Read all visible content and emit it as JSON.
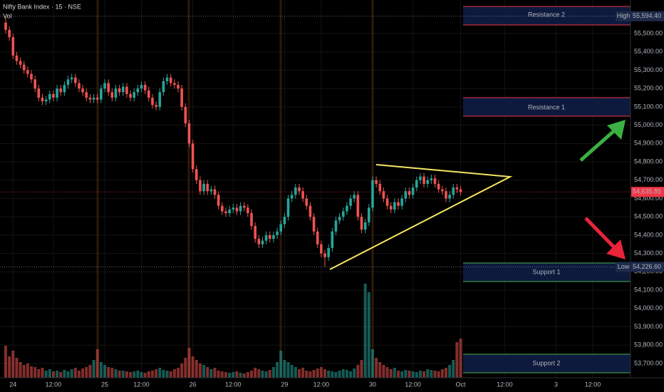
{
  "chart_data": {
    "type": "candlestick",
    "title": "Nifty Bank Index · 15 · NSE",
    "volume_label": "Vol",
    "xlim": [
      -1.55,
      170.3
    ],
    "ylim": [
      53622,
      55683
    ],
    "xticks": [
      {
        "value": 2,
        "label": "24"
      },
      {
        "value": 13,
        "label": "12:00"
      },
      {
        "value": 27,
        "label": "25"
      },
      {
        "value": 37,
        "label": "12:00"
      },
      {
        "value": 51,
        "label": "26"
      },
      {
        "value": 62,
        "label": "12:00"
      },
      {
        "value": 76,
        "label": "29"
      },
      {
        "value": 86,
        "label": "12:00"
      },
      {
        "value": 100,
        "label": "30"
      },
      {
        "value": 111,
        "label": "12:00"
      },
      {
        "value": 124,
        "label": "Oct"
      },
      {
        "value": 136,
        "label": "12:00"
      },
      {
        "value": 150,
        "label": "3"
      },
      {
        "value": 160,
        "label": "12:00"
      }
    ],
    "yticks": [
      {
        "value": 53700,
        "label": "53,700.00"
      },
      {
        "value": 53800,
        "label": "53,800.00"
      },
      {
        "value": 53900,
        "label": "53,900.00"
      },
      {
        "value": 54000,
        "label": "54,000.00"
      },
      {
        "value": 54100,
        "label": "54,100.00"
      },
      {
        "value": 54200,
        "label": "54,200.00"
      },
      {
        "value": 54300,
        "label": "54,300.00"
      },
      {
        "value": 54400,
        "label": "54,400.00"
      },
      {
        "value": 54500,
        "label": "54,500.00"
      },
      {
        "value": 54600,
        "label": "54,600.00"
      },
      {
        "value": 54700,
        "label": "54,700.00"
      },
      {
        "value": 54800,
        "label": "54,800.00"
      },
      {
        "value": 54900,
        "label": "54,900.00"
      },
      {
        "value": 55000,
        "label": "55,000.00"
      },
      {
        "value": 55100,
        "label": "55,100.00"
      },
      {
        "value": 55200,
        "label": "55,200.00"
      },
      {
        "value": 55300,
        "label": "55,300.00"
      },
      {
        "value": 55400,
        "label": "55,400.00"
      },
      {
        "value": 55500,
        "label": "55,500.00"
      }
    ],
    "grid": true,
    "up_color": "#26a69a",
    "down_color": "#ef5350",
    "open": [
      55560,
      55520,
      55480,
      55380,
      55350,
      55330,
      55300,
      55280,
      55250,
      55200,
      55150,
      55130,
      55140,
      55170,
      55150,
      55200,
      55180,
      55220,
      55250,
      55260,
      55230,
      55200,
      55180,
      55150,
      55140,
      55150,
      55140,
      55200,
      55230,
      55180,
      55150,
      55200,
      55180,
      55210,
      55170,
      55150,
      55180,
      55200,
      55220,
      55190,
      55150,
      55110,
      55100,
      55180,
      55240,
      55260,
      55230,
      55220,
      55200,
      55100,
      55010,
      54900,
      54760,
      54700,
      54640,
      54680,
      54640,
      54650,
      54620,
      54560,
      54530,
      54520,
      54540,
      54550,
      54530,
      54560,
      54550,
      54520,
      54450,
      54380,
      54350,
      54370,
      54400,
      54380,
      54400,
      54420,
      54460,
      54500,
      54600,
      54620,
      54660,
      54640,
      54600,
      54560,
      54500,
      54420,
      54350,
      54300,
      54280,
      54330,
      54420,
      54480,
      54500,
      54530,
      54560,
      54600,
      54620,
      54500,
      54430,
      54470,
      54550,
      54700,
      54680,
      54640,
      54600,
      54560,
      54540,
      54580,
      54560,
      54600,
      54640,
      54620,
      54660,
      54700,
      54720,
      54680,
      54700,
      54710,
      54680,
      54650,
      54640,
      54600,
      54620,
      54660,
      54650
    ],
    "high": [
      55594.4,
      55540,
      55500,
      55400,
      55370,
      55350,
      55320,
      55300,
      55270,
      55220,
      55170,
      55160,
      55190,
      55190,
      55220,
      55220,
      55240,
      55270,
      55280,
      55280,
      55250,
      55220,
      55200,
      55170,
      55170,
      55170,
      55220,
      55250,
      55250,
      55200,
      55220,
      55220,
      55230,
      55230,
      55190,
      55200,
      55220,
      55240,
      55240,
      55210,
      55170,
      55130,
      55200,
      55260,
      55280,
      55280,
      55250,
      55240,
      55220,
      55120,
      55030,
      54920,
      54780,
      54720,
      54700,
      54700,
      54670,
      54670,
      54640,
      54580,
      54550,
      54560,
      54570,
      54570,
      54580,
      54580,
      54570,
      54540,
      54470,
      54400,
      54390,
      54420,
      54420,
      54420,
      54440,
      54480,
      54520,
      54620,
      54640,
      54680,
      54680,
      54660,
      54620,
      54580,
      54520,
      54440,
      54370,
      54320,
      54350,
      54440,
      54500,
      54520,
      54550,
      54580,
      54620,
      54640,
      54640,
      54520,
      54490,
      54570,
      54720,
      54720,
      54700,
      54660,
      54620,
      54580,
      54600,
      54600,
      54620,
      54660,
      54660,
      54680,
      54720,
      54740,
      54740,
      54720,
      54730,
      54730,
      54700,
      54670,
      54660,
      54640,
      54680,
      54680,
      54670
    ],
    "low": [
      55500,
      55460,
      55360,
      55330,
      55310,
      55280,
      55260,
      55230,
      55180,
      55130,
      55110,
      55110,
      55120,
      55130,
      55130,
      55160,
      55160,
      55200,
      55230,
      55210,
      55180,
      55160,
      55130,
      55120,
      55120,
      55120,
      55120,
      55180,
      55160,
      55130,
      55130,
      55160,
      55160,
      55150,
      55130,
      55130,
      55160,
      55180,
      55170,
      55130,
      55090,
      55080,
      55080,
      55160,
      55220,
      55210,
      55200,
      55180,
      55080,
      54990,
      54880,
      54740,
      54680,
      54620,
      54620,
      54620,
      54620,
      54600,
      54540,
      54510,
      54500,
      54500,
      54520,
      54510,
      54510,
      54530,
      54500,
      54430,
      54360,
      54330,
      54330,
      54350,
      54360,
      54360,
      54380,
      54400,
      54440,
      54480,
      54580,
      54600,
      54620,
      54580,
      54540,
      54480,
      54400,
      54330,
      54280,
      54226.6,
      54260,
      54310,
      54400,
      54460,
      54480,
      54510,
      54540,
      54580,
      54480,
      54410,
      54410,
      54450,
      54530,
      54660,
      54620,
      54580,
      54540,
      54520,
      54520,
      54540,
      54540,
      54580,
      54600,
      54600,
      54640,
      54680,
      54660,
      54660,
      54680,
      54660,
      54630,
      54620,
      54580,
      54580,
      54600,
      54630,
      54616
    ],
    "close": [
      55520,
      55480,
      55380,
      55350,
      55330,
      55300,
      55280,
      55250,
      55200,
      55150,
      55130,
      55140,
      55170,
      55150,
      55200,
      55180,
      55220,
      55250,
      55260,
      55230,
      55200,
      55180,
      55150,
      55140,
      55150,
      55140,
      55200,
      55230,
      55180,
      55150,
      55200,
      55180,
      55210,
      55170,
      55150,
      55180,
      55200,
      55220,
      55190,
      55150,
      55110,
      55100,
      55180,
      55240,
      55260,
      55230,
      55220,
      55200,
      55100,
      55010,
      54900,
      54760,
      54700,
      54640,
      54680,
      54640,
      54650,
      54620,
      54560,
      54530,
      54520,
      54540,
      54550,
      54530,
      54560,
      54550,
      54520,
      54450,
      54380,
      54350,
      54370,
      54400,
      54380,
      54400,
      54420,
      54460,
      54500,
      54600,
      54620,
      54660,
      54640,
      54600,
      54560,
      54500,
      54420,
      54350,
      54300,
      54280,
      54330,
      54420,
      54480,
      54500,
      54530,
      54560,
      54600,
      54620,
      54500,
      54430,
      54470,
      54550,
      54700,
      54680,
      54640,
      54600,
      54560,
      54540,
      54580,
      54560,
      54600,
      54640,
      54620,
      54660,
      54700,
      54720,
      54680,
      54700,
      54710,
      54680,
      54650,
      54640,
      54600,
      54620,
      54660,
      54650,
      54635.85
    ],
    "volume": [
      45,
      30,
      38,
      28,
      22,
      18,
      20,
      16,
      15,
      12,
      14,
      10,
      12,
      9,
      10,
      8,
      11,
      9,
      12,
      14,
      10,
      13,
      15,
      18,
      25,
      40,
      22,
      18,
      15,
      14,
      12,
      10,
      10,
      9,
      8,
      9,
      10,
      8,
      7,
      9,
      10,
      12,
      14,
      11,
      10,
      9,
      12,
      14,
      20,
      28,
      42,
      30,
      25,
      20,
      18,
      15,
      12,
      14,
      10,
      9,
      8,
      7,
      8,
      9,
      7,
      6,
      8,
      10,
      14,
      12,
      10,
      9,
      11,
      15,
      22,
      38,
      25,
      22,
      18,
      15,
      12,
      14,
      10,
      9,
      11,
      13,
      15,
      12,
      10,
      9,
      8,
      10,
      12,
      11,
      9,
      13,
      18,
      25,
      132,
      120,
      40,
      28,
      22,
      18,
      15,
      12,
      14,
      10,
      9,
      11,
      10,
      9,
      8,
      10,
      9,
      12,
      11,
      10,
      9,
      12,
      14,
      18,
      25,
      50,
      55
    ],
    "high_mark": {
      "tag": "High",
      "value": 55594.4,
      "label": "55,594.40"
    },
    "low_mark": {
      "tag": "Low",
      "value": 54226.6,
      "label": "54,226.60"
    },
    "last_price": {
      "value": 54635.85,
      "label": "54,635.85",
      "color": "#f23645"
    },
    "zones": [
      {
        "label": "Resistance 2",
        "color": "#f23645"
      },
      {
        "label": "Resistance 1",
        "color": "#f23645"
      },
      {
        "label": "Support 1",
        "color": "#4caf50"
      },
      {
        "label": "Support 2",
        "color": "#4caf50"
      }
    ]
  }
}
